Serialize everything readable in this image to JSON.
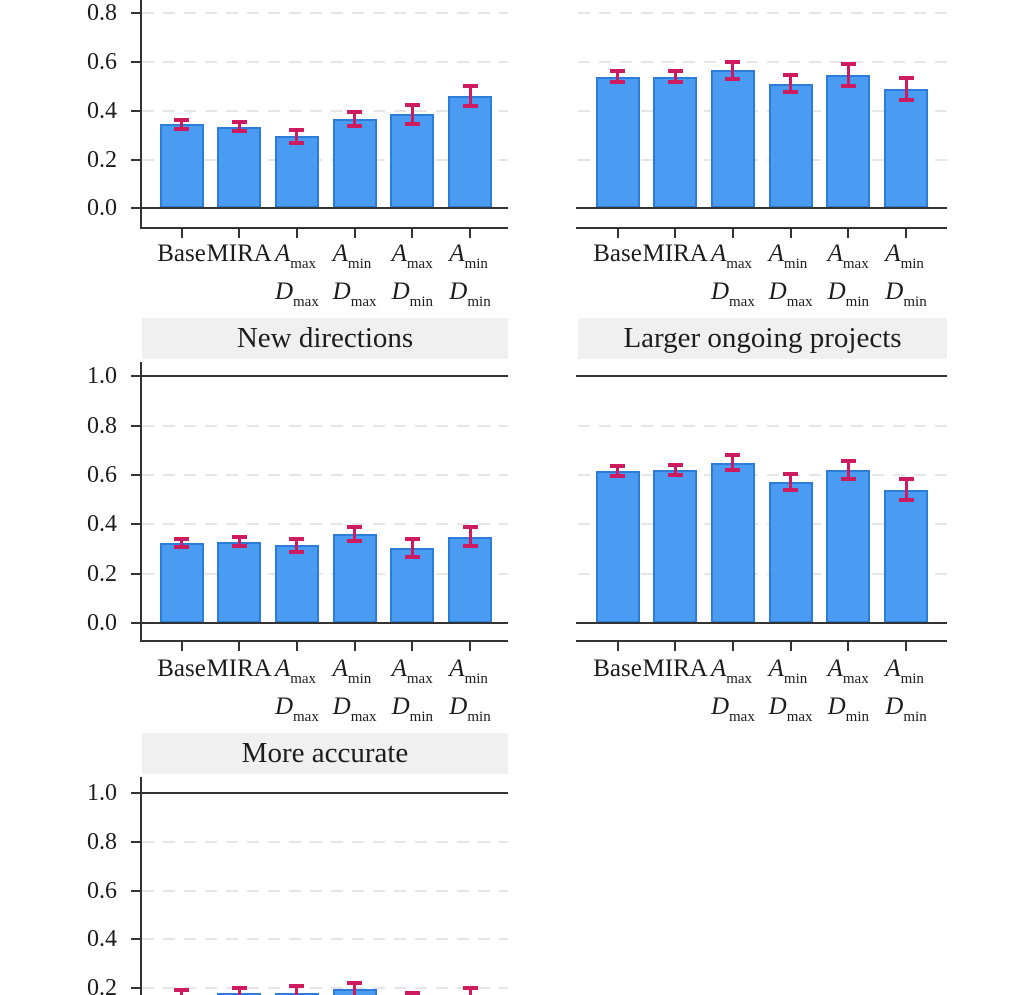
{
  "figure": {
    "background": "#ffffff",
    "description": "Multi-panel bar chart figure with error bars; top row panels are cropped at the top of the image and the bottom-left panel is cropped at the bottom."
  },
  "chart_data": {
    "type": "bar",
    "categories": [
      {
        "type": "text",
        "text": "Base"
      },
      {
        "type": "text",
        "text": "MIRA"
      },
      {
        "type": "math",
        "lines": [
          {
            "base": "A",
            "sub": "max"
          },
          {
            "base": "D",
            "sub": "max"
          }
        ]
      },
      {
        "type": "math",
        "lines": [
          {
            "base": "A",
            "sub": "min"
          },
          {
            "base": "D",
            "sub": "max"
          }
        ]
      },
      {
        "type": "math",
        "lines": [
          {
            "base": "A",
            "sub": "max"
          },
          {
            "base": "D",
            "sub": "min"
          }
        ]
      },
      {
        "type": "math",
        "lines": [
          {
            "base": "A",
            "sub": "min"
          },
          {
            "base": "D",
            "sub": "min"
          }
        ]
      }
    ],
    "ylim": [
      0,
      1
    ],
    "ytick_labels": [
      "0.0",
      "0.2",
      "0.4",
      "0.6",
      "0.8",
      "1.0"
    ],
    "grid": "dashed horizontal gridlines at 0.2 steps, solid lines at 0.0 and 1.0",
    "legend": "none",
    "panels": [
      {
        "position": "top-left",
        "title": "",
        "title_visible": false,
        "values": [
          0.345,
          0.335,
          0.295,
          0.365,
          0.385,
          0.46
        ],
        "errors": [
          0.018,
          0.018,
          0.028,
          0.028,
          0.038,
          0.04
        ],
        "y_axis_labels": true
      },
      {
        "position": "top-right",
        "title": "",
        "title_visible": false,
        "values": [
          0.54,
          0.54,
          0.565,
          0.51,
          0.545,
          0.49
        ],
        "errors": [
          0.022,
          0.022,
          0.035,
          0.035,
          0.045,
          0.045
        ],
        "y_axis_labels": false
      },
      {
        "position": "middle-left",
        "title": "New directions",
        "title_visible": true,
        "values": [
          0.325,
          0.33,
          0.315,
          0.36,
          0.305,
          0.35
        ],
        "errors": [
          0.018,
          0.018,
          0.028,
          0.028,
          0.035,
          0.038
        ],
        "y_axis_labels": true
      },
      {
        "position": "middle-right",
        "title": "Larger ongoing projects",
        "title_visible": true,
        "values": [
          0.615,
          0.62,
          0.65,
          0.57,
          0.62,
          0.54
        ],
        "errors": [
          0.02,
          0.02,
          0.03,
          0.032,
          0.038,
          0.042
        ],
        "y_axis_labels": true
      },
      {
        "position": "bottom-left",
        "title": "More accurate",
        "title_visible": true,
        "values": [
          0.165,
          0.18,
          0.18,
          0.195,
          0.155,
          0.165
        ],
        "errors": [
          0.028,
          0.022,
          0.03,
          0.026,
          0.024,
          0.035
        ],
        "y_axis_labels": true
      }
    ],
    "colors": {
      "bar_fill": "#4A9CF3",
      "bar_edge": "#2C7DDA",
      "error_bar": "#CE1A5E",
      "gridline": "#E6E6E6",
      "strip_background": "#F0F0F0",
      "axis": "#333333",
      "text": "#1C1C1C"
    }
  }
}
